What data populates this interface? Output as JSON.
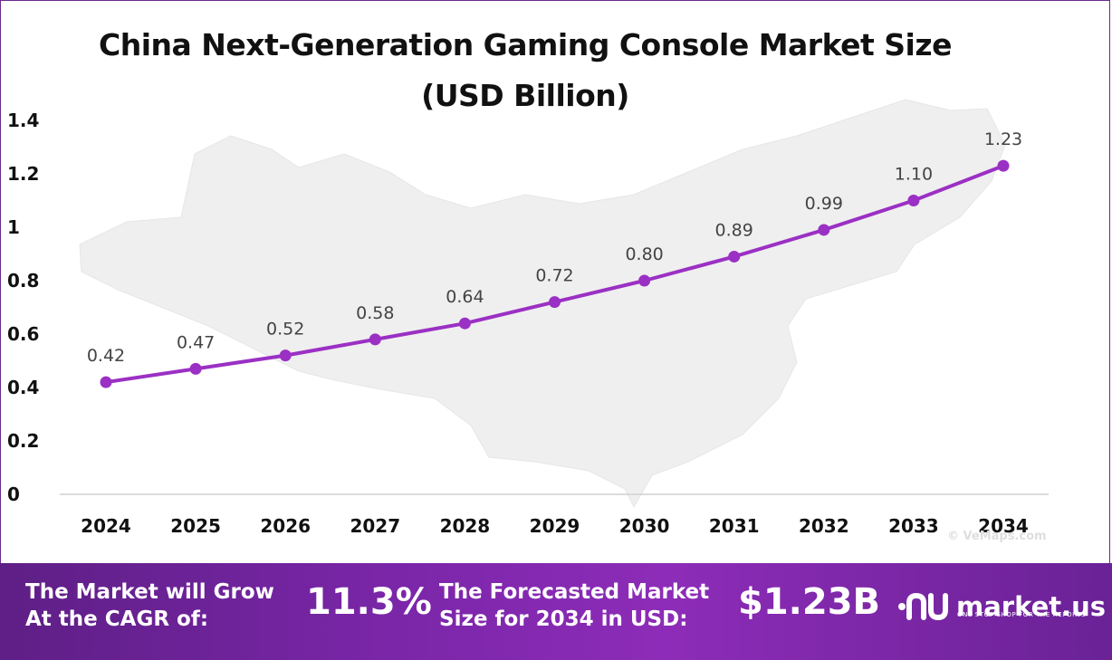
{
  "chart_data": {
    "type": "line",
    "title": "China Next-Generation Gaming Console Market Size (USD Billion)",
    "categories": [
      "2024",
      "2025",
      "2026",
      "2027",
      "2028",
      "2029",
      "2030",
      "2031",
      "2032",
      "2033",
      "2034"
    ],
    "values": [
      0.42,
      0.47,
      0.52,
      0.58,
      0.64,
      0.72,
      0.8,
      0.89,
      0.99,
      1.1,
      1.23
    ],
    "value_labels": [
      "0.42",
      "0.47",
      "0.52",
      "0.58",
      "0.64",
      "0.72",
      "0.80",
      "0.89",
      "0.99",
      "1.10",
      "1.23"
    ],
    "y_ticks": [
      "0",
      "0.2",
      "0.4",
      "0.6",
      "0.8",
      "1",
      "1.2",
      "1.4"
    ],
    "ylim": [
      0,
      1.4
    ],
    "xlabel": "",
    "ylabel": "",
    "grid": false,
    "line_color": "#9b30c4",
    "background": "map of China (light grey)"
  },
  "watermark": "© VeMaps.com",
  "footer": {
    "cagr_text_line1": "The Market will Grow",
    "cagr_text_line2": "At the CAGR of:",
    "cagr_value": "11.3%",
    "forecast_text_line1": "The Forecasted Market",
    "forecast_text_line2": "Size for 2034 in USD:",
    "forecast_value": "$1.23B",
    "brand": "market.us",
    "tagline": "ONE STOP SHOP FOR THE REPORTS"
  }
}
